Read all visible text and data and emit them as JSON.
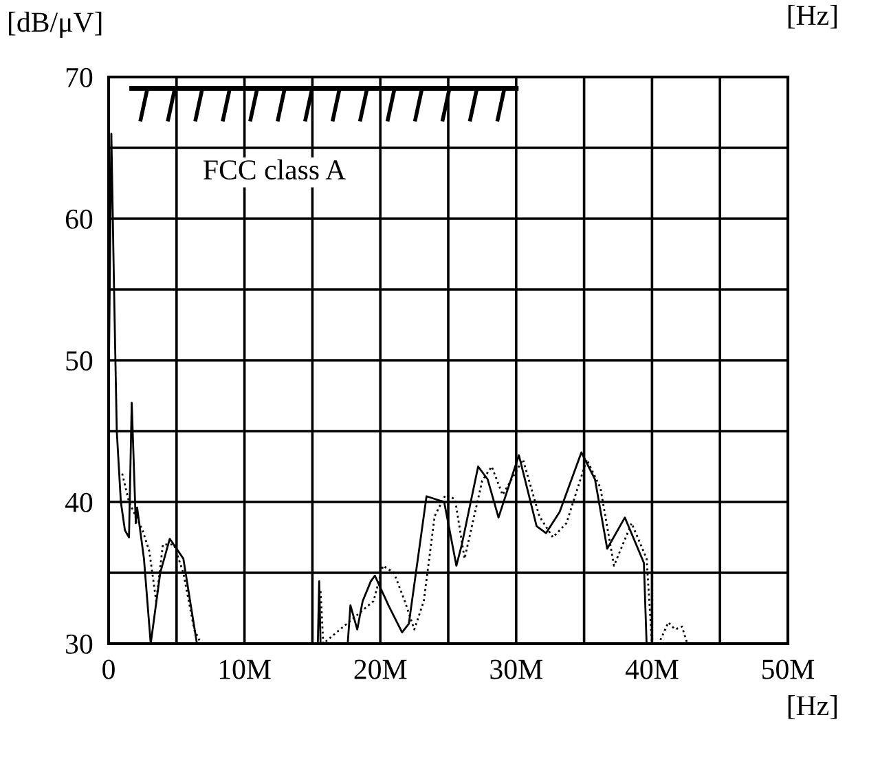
{
  "chart_data": {
    "type": "line",
    "xlabel": "[Hz]",
    "ylabel": "[dB/μV]",
    "annotations": [
      "[Hz]",
      {
        "text": "FCC class A",
        "x": 12.2,
        "y": 69.2
      }
    ],
    "x": [
      0.0,
      0.2,
      0.4,
      0.6,
      0.9,
      1.2,
      1.5,
      1.7,
      2.0,
      2.1,
      2.6,
      3.1,
      3.8,
      4.5,
      5.5,
      6.2,
      6.5,
      15.4,
      15.5,
      15.6,
      17.6,
      17.8,
      18.3,
      18.7,
      19.3,
      19.6,
      20.6,
      21.6,
      22.1,
      23.4,
      24.7,
      25.6,
      26.0,
      27.2,
      27.9,
      28.7,
      30.2,
      31.5,
      32.2,
      33.2,
      34.8,
      35.8,
      36.7,
      38.0,
      39.4,
      39.6
    ],
    "series": [
      {
        "color": "#000000",
        "line_style": "solid",
        "values": [
          48,
          66,
          55,
          45,
          40,
          38,
          37.5,
          47,
          38.5,
          39.6,
          36,
          30,
          35,
          37.4,
          36,
          31.8,
          30,
          30,
          34.4,
          30,
          30,
          32.7,
          31,
          33,
          34.4,
          34.8,
          32.7,
          30.8,
          31.4,
          40.4,
          40,
          35.5,
          37,
          42.5,
          41.6,
          38.9,
          43.3,
          38.3,
          37.8,
          39.3,
          43.5,
          41.6,
          36.7,
          38.9,
          35.7,
          30
        ]
      },
      {
        "color": "#000000",
        "line_style": "dotted",
        "x": [
          1.0,
          1.5,
          2.0,
          2.5,
          3.0,
          3.5,
          4.0,
          4.8,
          5.5,
          6.3,
          6.8,
          15.3,
          15.6,
          15.8,
          19.5,
          20.2,
          21.0,
          21.8,
          22.5,
          23.2,
          24.0,
          24.8,
          25.5,
          26.2,
          27.5,
          28.2,
          29.0,
          30.5,
          31.7,
          32.7,
          33.7,
          35.2,
          36.2,
          37.2,
          38.5,
          39.6,
          40.0,
          40.5,
          41.2,
          41.7,
          42.2,
          42.6
        ],
        "values": [
          42,
          40,
          39,
          38,
          36.5,
          33,
          37,
          37,
          35,
          31,
          30,
          null,
          33.7,
          30,
          33,
          35.5,
          35,
          33,
          31,
          33,
          39,
          40.5,
          40.2,
          36,
          41.5,
          42.5,
          40.5,
          43,
          39,
          37.5,
          38.5,
          43,
          41,
          35.5,
          38.5,
          36,
          30,
          30,
          31.5,
          31,
          31.2,
          30
        ]
      },
      {
        "color": "#000000",
        "line_style": "solid",
        "x": [
          1.7,
          30
        ],
        "values": [
          69.2,
          69.2
        ]
      }
    ],
    "xlim": [
      0,
      50
    ],
    "ylim": [
      30,
      70
    ],
    "xticks": [
      0,
      {
        "value": 5,
        "label": null
      },
      {
        "value": 10,
        "label": "10M"
      },
      {
        "value": 15,
        "label": null
      },
      {
        "value": 20,
        "label": "20M"
      },
      {
        "value": 25,
        "label": null
      },
      {
        "value": 30,
        "label": "30M"
      },
      {
        "value": 35,
        "label": null
      },
      {
        "value": 40,
        "label": "40M"
      },
      {
        "value": 45,
        "label": null
      },
      {
        "value": 50,
        "label": "50M"
      }
    ],
    "yticks": [
      30,
      {
        "value": 35,
        "label": null
      },
      40,
      {
        "value": 45,
        "label": null
      },
      50,
      {
        "value": 55,
        "label": null
      },
      60,
      {
        "value": 65,
        "label": null
      },
      70
    ],
    "grid": true,
    "legend": false
  }
}
